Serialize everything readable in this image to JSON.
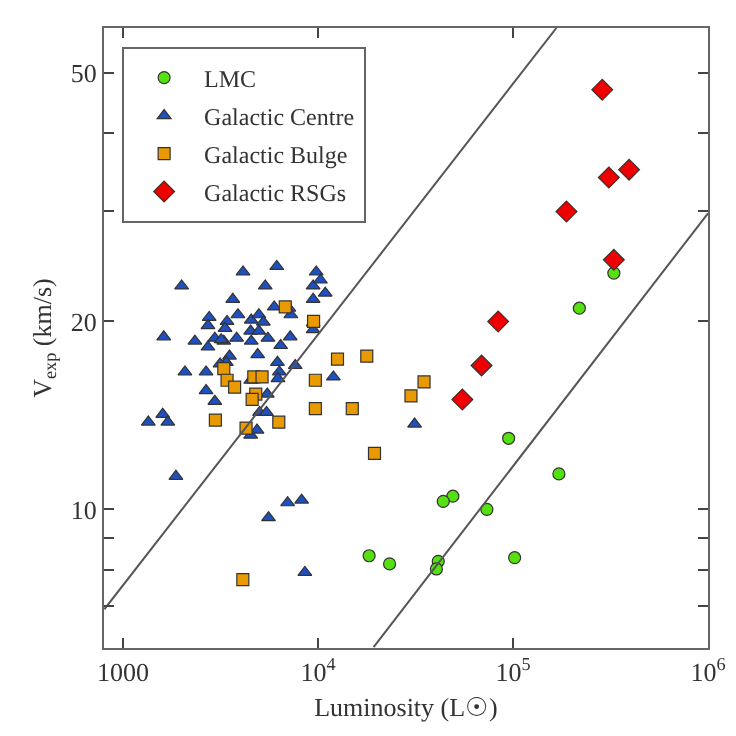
{
  "chart_data": {
    "type": "scatter",
    "xlabel": "Luminosity (L☉)",
    "ylabel": "V$_{exp}$ (km/s)",
    "log": "xy",
    "grid": false,
    "legend": "top left",
    "xlim": [
      800,
      1000000
    ],
    "ylim": [
      6,
      59
    ],
    "xticks": [
      1000,
      {
        "value": 10000,
        "label": "10$^{4}$"
      },
      {
        "value": 100000,
        "label": "10$^{5}$"
      },
      {
        "value": 1000000,
        "label": "10$^{6}$"
      }
    ],
    "yticks": [
      {
        "value": 7,
        "label": null
      },
      {
        "value": 8,
        "label": null
      },
      {
        "value": 9,
        "label": null
      },
      10,
      20,
      {
        "value": 30,
        "label": null
      },
      {
        "value": 40,
        "label": null
      },
      50
    ],
    "series": [
      {
        "name": "LMC",
        "color": "#55e010",
        "marker": "circle",
        "x": [
          329000,
          219000,
          95000,
          172000,
          73500,
          49200,
          43900,
          18300,
          23300,
          41400,
          40500,
          102000
        ],
        "values": [
          23.9,
          21.0,
          13.0,
          11.4,
          10.0,
          10.5,
          10.3,
          8.43,
          8.18,
          8.26,
          8.03,
          8.37
        ]
      },
      {
        "name": "Galactic Centre",
        "color": "#1f50c0",
        "marker": "triangle",
        "x": [
          4130,
          6150,
          9800,
          2000,
          5370,
          9450,
          10300,
          10900,
          3660,
          9450,
          2770,
          3420,
          3890,
          4550,
          4980,
          5250,
          5970,
          7100,
          7260,
          2730,
          3340,
          4520,
          4980,
          9450,
          9450,
          1620,
          2340,
          2960,
          3290,
          3830,
          4550,
          5540,
          6440,
          7210,
          2730,
          3190,
          4910,
          3520,
          3390,
          6200,
          7650,
          2080,
          2670,
          6340,
          3150,
          6240,
          12000,
          2670,
          5500,
          4520,
          2960,
          5020,
          5450,
          1600,
          1350,
          1700,
          4520,
          4870,
          1870,
          6990,
          8250,
          5580,
          8570,
          31300
        ],
        "values": [
          24.0,
          24.5,
          24.0,
          22.8,
          22.8,
          22.8,
          23.3,
          22.2,
          21.7,
          21.7,
          20.3,
          20.0,
          20.5,
          20.1,
          20.5,
          19.95,
          21.1,
          21.0,
          20.5,
          19.7,
          19.5,
          19.3,
          19.3,
          19.9,
          19.4,
          18.9,
          18.6,
          18.8,
          18.6,
          18.8,
          18.6,
          18.8,
          18.3,
          18.9,
          18.2,
          18.7,
          17.7,
          17.6,
          17.2,
          17.2,
          17.0,
          16.6,
          16.6,
          16.6,
          17.1,
          16.2,
          16.3,
          15.5,
          15.3,
          16.1,
          14.9,
          14.3,
          14.3,
          14.2,
          13.8,
          13.8,
          13.15,
          13.4,
          11.3,
          10.25,
          10.35,
          9.7,
          7.93,
          13.7
        ]
      },
      {
        "name": "Galactic Bulge",
        "color": "#e89a00",
        "marker": "square",
        "x": [
          6800,
          9500,
          12600,
          17800,
          9700,
          35000,
          30000,
          15000,
          9700,
          19500,
          3290,
          3420,
          3740,
          4690,
          5170,
          4800,
          4600,
          2980,
          4280,
          6300,
          4120
        ],
        "values": [
          21.1,
          20.0,
          17.4,
          17.6,
          16.1,
          16.0,
          15.2,
          14.5,
          14.5,
          12.3,
          16.8,
          16.1,
          15.7,
          16.3,
          16.3,
          15.3,
          15.0,
          13.9,
          13.5,
          13.8,
          7.72
        ]
      },
      {
        "name": "Galactic RSGs",
        "color": "#ee0000",
        "marker": "diamond",
        "x": [
          287000,
          310000,
          394000,
          188000,
          329000,
          84000,
          69000,
          55000
        ],
        "values": [
          47.0,
          34.0,
          35.0,
          30.0,
          25.1,
          20.0,
          17.0,
          15.0
        ]
      },
      {
        "type": "line",
        "color": "#555555",
        "line_style": "solid",
        "marker": "none",
        "x": [
          803,
          167000
        ],
        "values": [
          6.92,
          59
        ]
      },
      {
        "type": "line",
        "color": "#555555",
        "line_style": "solid",
        "marker": "none",
        "x": [
          19300,
          1000000
        ],
        "values": [
          6.02,
          29.8
        ]
      }
    ]
  }
}
